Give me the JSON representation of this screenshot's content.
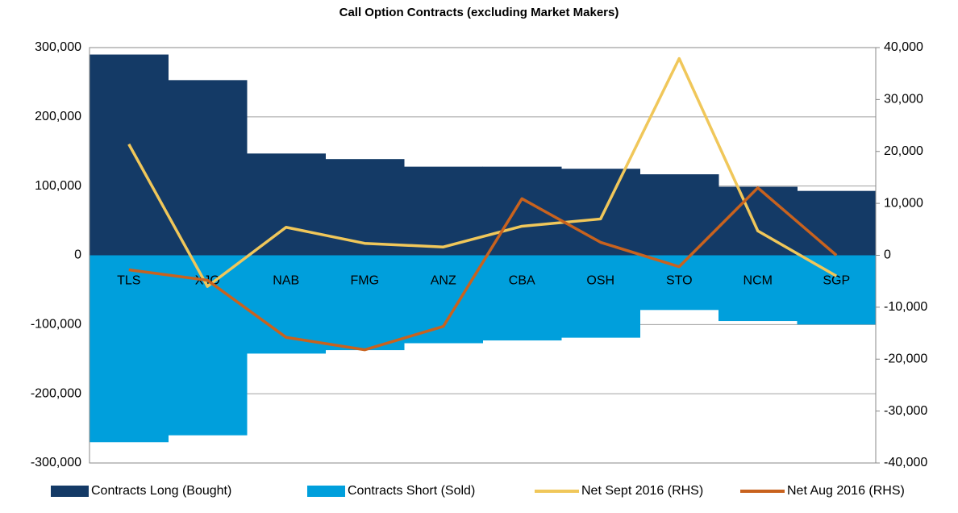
{
  "chart_data": {
    "type": "bar-line",
    "title": "Call Option Contracts (excluding Market Makers)",
    "categories": [
      "TLS",
      "XJO",
      "NAB",
      "FMG",
      "ANZ",
      "CBA",
      "OSH",
      "STO",
      "NCM",
      "SGP"
    ],
    "series": [
      {
        "name": "Contracts Long (Bought)",
        "type": "bar",
        "color": "#143a66",
        "values": [
          290000,
          253000,
          147000,
          139000,
          128000,
          128000,
          125000,
          117000,
          99000,
          93000
        ]
      },
      {
        "name": "Contracts Short (Sold)",
        "type": "bar",
        "color": "#009fdc",
        "values": [
          -270000,
          -260000,
          -142000,
          -137000,
          -127000,
          -123000,
          -119000,
          -79000,
          -95000,
          -100000
        ]
      },
      {
        "name": "Net Sept 2016 (RHS)",
        "type": "line",
        "axis": "y2",
        "color": "#f0c75a",
        "values": [
          21400,
          -6000,
          5400,
          2300,
          1600,
          5600,
          7000,
          37900,
          4700,
          -4000
        ]
      },
      {
        "name": "Net Aug 2016 (RHS)",
        "type": "line",
        "axis": "y2",
        "color": "#c8621e",
        "values": [
          -2800,
          -4800,
          -15800,
          -18200,
          -13700,
          10900,
          2500,
          -2200,
          13000,
          0
        ]
      }
    ],
    "ylim": [
      -300000,
      300000
    ],
    "yticks": [
      {
        "value": -300000,
        "label": "-300,000"
      },
      {
        "value": -200000,
        "label": "-200,000"
      },
      {
        "value": -100000,
        "label": "-100,000"
      },
      0,
      {
        "value": 100000,
        "label": "100,000"
      },
      {
        "value": 200000,
        "label": "200,000"
      },
      {
        "value": 300000,
        "label": "300,000"
      }
    ],
    "y2lim": [
      -40000,
      40000
    ],
    "y2ticks": [
      {
        "value": -40000,
        "label": "-40,000"
      },
      {
        "value": -30000,
        "label": "-30,000"
      },
      {
        "value": -20000,
        "label": "-20,000"
      },
      {
        "value": -10000,
        "label": "-10,000"
      },
      0,
      {
        "value": 10000,
        "label": "10,000"
      },
      {
        "value": 20000,
        "label": "20,000"
      },
      {
        "value": 30000,
        "label": "30,000"
      },
      {
        "value": 40000,
        "label": "40,000"
      }
    ],
    "grid": true,
    "legend": "bottom"
  }
}
